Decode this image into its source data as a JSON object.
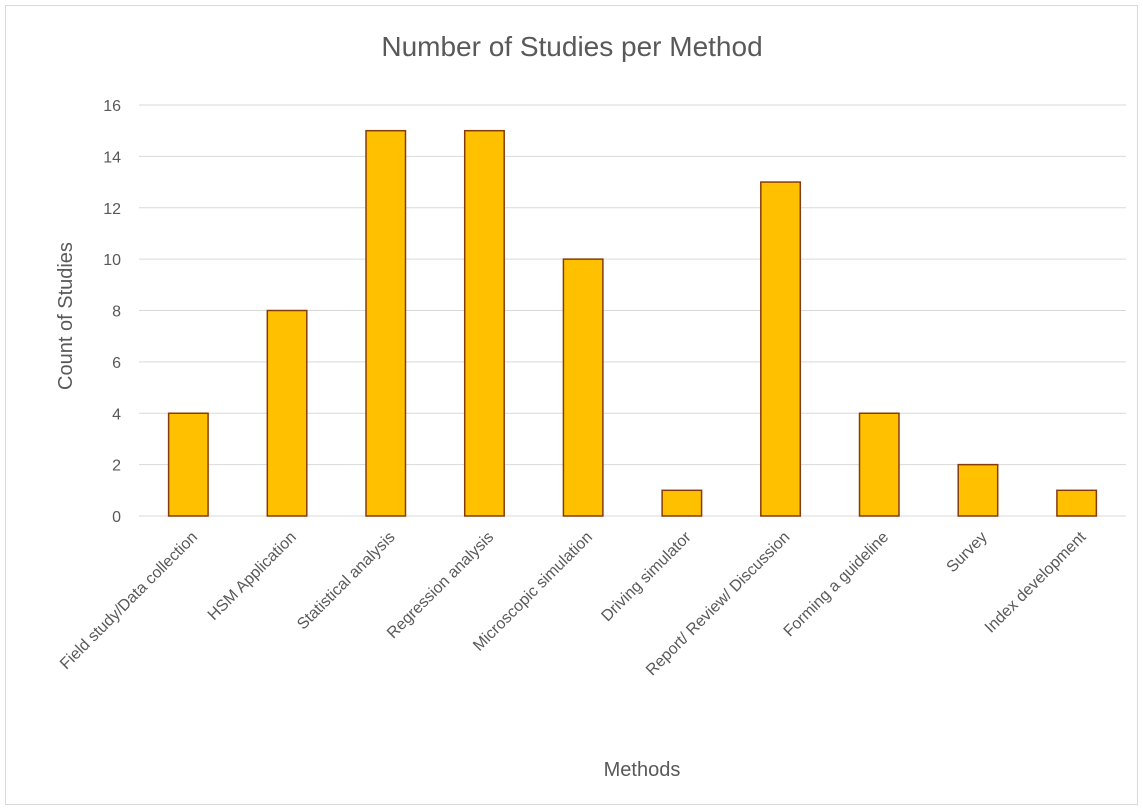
{
  "chart_data": {
    "type": "bar",
    "title": "Number of Studies per Method",
    "xlabel": "Methods",
    "ylabel": "Count of Studies",
    "categories": [
      "Field study/Data collection",
      "HSM Application",
      "Statistical analysis",
      "Regression analysis",
      "Microscopic simulation",
      "Driving simulator",
      "Report/ Review/ Discussion",
      "Forming a guideline",
      "Survey",
      "Index development"
    ],
    "values": [
      4,
      8,
      15,
      15,
      10,
      1,
      13,
      4,
      2,
      1
    ],
    "ylim": [
      0,
      16
    ],
    "yticks": [
      "0",
      "2",
      "4",
      "6",
      "8",
      "10",
      "12",
      "14",
      "16"
    ],
    "grid": true,
    "legend": "none",
    "bar_fill": "#ffc000",
    "bar_stroke": "#843c0c"
  }
}
